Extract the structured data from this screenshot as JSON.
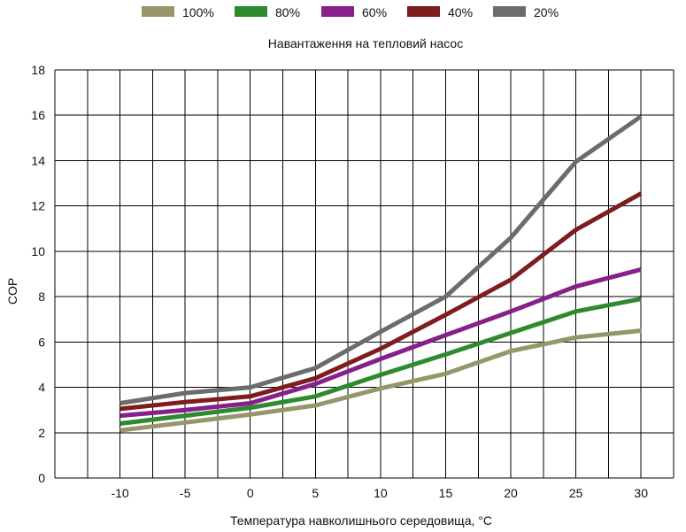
{
  "colors": {
    "100%": "#96966a",
    "80%": "#2e8a2e",
    "60%": "#87208a",
    "40%": "#7f1c1e",
    "20%": "#6a6d6c"
  },
  "chart_data": {
    "type": "line",
    "title": "Навантаження на тепловий насос",
    "xlabel": "Температура навколишнього середовища, °C",
    "ylabel": "COP",
    "x": [
      -10,
      -5,
      0,
      5,
      10,
      15,
      20,
      25,
      30
    ],
    "x_tick_labels": [
      "-10",
      "-5",
      "0",
      "5",
      "10",
      "15",
      "20",
      "25",
      "30"
    ],
    "y_tick_labels": [
      "0",
      "2",
      "4",
      "6",
      "8",
      "10",
      "12",
      "14",
      "16",
      "18"
    ],
    "ylim": [
      0,
      18
    ],
    "grid": true,
    "legend_position": "top",
    "series": [
      {
        "name": "100%",
        "values": [
          2.1,
          2.45,
          2.8,
          3.2,
          3.95,
          4.6,
          5.6,
          6.2,
          6.5
        ]
      },
      {
        "name": "80%",
        "values": [
          2.4,
          2.75,
          3.1,
          3.6,
          4.55,
          5.45,
          6.4,
          7.35,
          7.9
        ]
      },
      {
        "name": "60%",
        "values": [
          2.75,
          3.0,
          3.3,
          4.15,
          5.25,
          6.3,
          7.35,
          8.45,
          9.2
        ]
      },
      {
        "name": "40%",
        "values": [
          3.05,
          3.35,
          3.6,
          4.4,
          5.7,
          7.2,
          8.75,
          10.95,
          12.55
        ]
      },
      {
        "name": "20%",
        "values": [
          3.3,
          3.75,
          4.0,
          4.85,
          6.45,
          8.0,
          10.6,
          13.95,
          15.95
        ]
      }
    ]
  }
}
